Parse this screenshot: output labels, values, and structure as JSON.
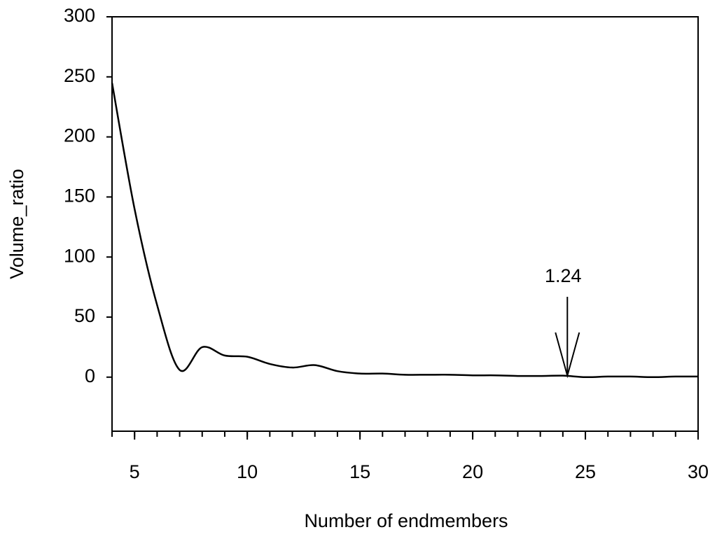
{
  "chart_data": {
    "type": "line",
    "x_label": "Number of endmembers",
    "y_label": "Volume_ratio",
    "x": [
      4,
      5,
      6,
      7,
      8,
      9,
      10,
      11,
      12,
      13,
      14,
      15,
      16,
      17,
      18,
      19,
      20,
      21,
      22,
      23,
      24,
      25,
      26,
      27,
      28,
      29,
      30
    ],
    "series": [
      {
        "color": "#000000",
        "values": [
          245,
          140,
          60,
          6,
          25,
          18,
          17,
          11,
          8,
          10,
          5,
          3,
          3,
          2,
          2,
          2,
          1.5,
          1.5,
          1,
          1,
          1.24,
          0,
          0.5,
          0.5,
          0,
          0.5,
          0.5
        ]
      }
    ],
    "xlim": [
      4,
      30
    ],
    "xticks": [
      5,
      10,
      15,
      20,
      25,
      30
    ],
    "ylim": [
      -45,
      300
    ],
    "yticks": [
      0,
      50,
      100,
      150,
      200,
      250,
      300
    ],
    "annotation": {
      "text": "1.24",
      "x": 24.2,
      "y": 1.24
    }
  }
}
